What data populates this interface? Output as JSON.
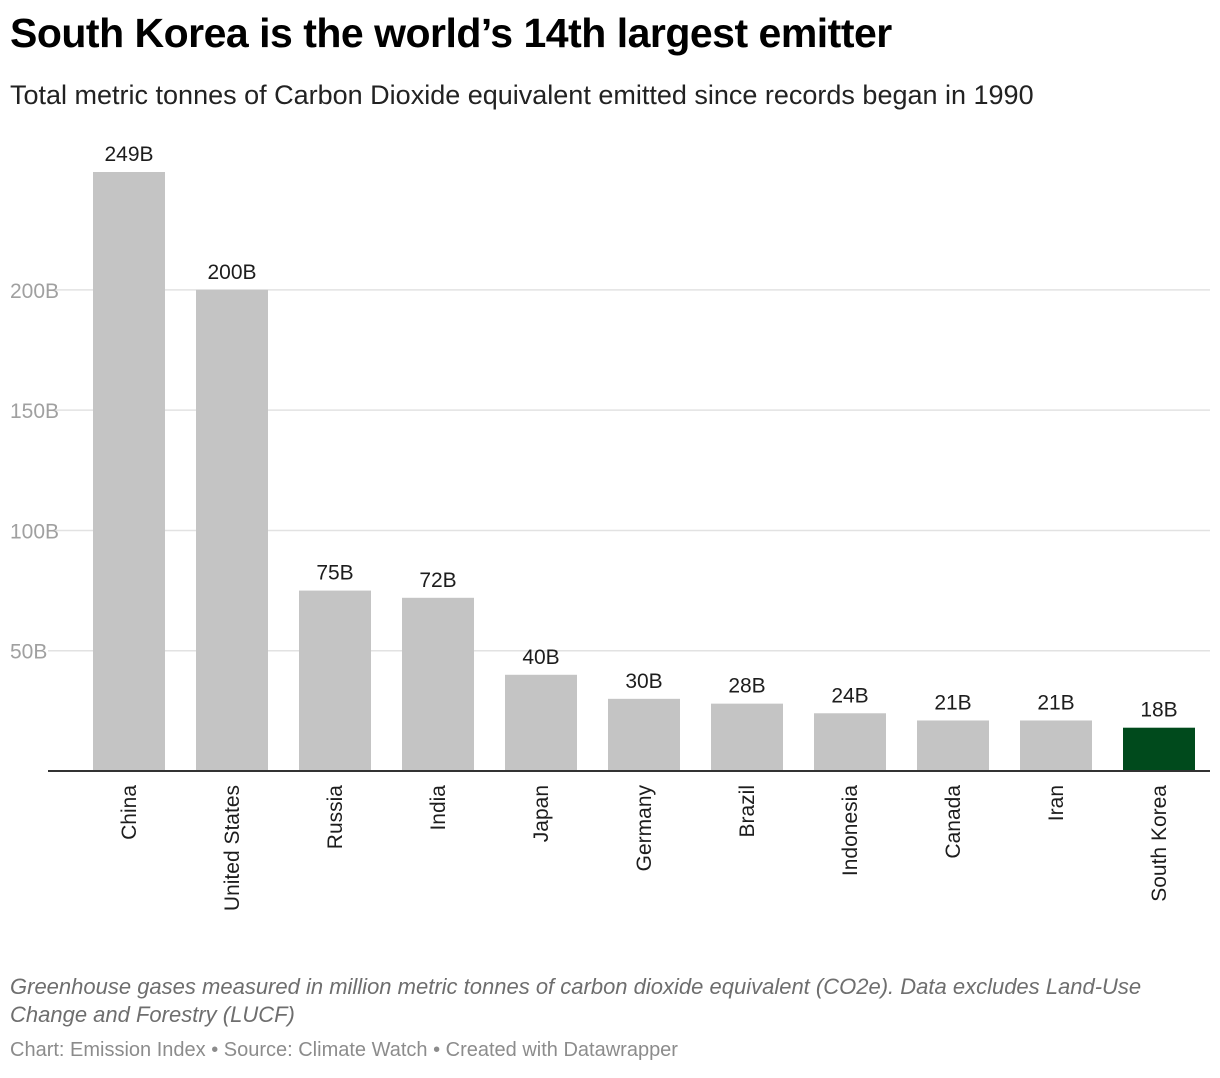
{
  "title": "South Korea is the world’s 14th largest emitter",
  "subtitle": "Total metric tonnes of Carbon Dioxide equivalent emitted since records began in 1990",
  "notes": "Greenhouse gases measured in million metric tonnes of carbon dioxide equivalent (CO2e). Data excludes Land-Use Change and Forestry (LUCF)",
  "footer": "Chart: Emission Index • Source: Climate Watch • Created with Datawrapper",
  "colors": {
    "bar": "#c4c4c4",
    "highlight": "#004a1c",
    "grid": "#e2e2e2",
    "axis_label": "#a0a0a0",
    "baseline": "#333333"
  },
  "chart_data": {
    "type": "bar",
    "categories": [
      "China",
      "United States",
      "Russia",
      "India",
      "Japan",
      "Germany",
      "Brazil",
      "Indonesia",
      "Canada",
      "Iran",
      "South Korea"
    ],
    "values": [
      249,
      200,
      75,
      72,
      40,
      30,
      28,
      24,
      21,
      21,
      18
    ],
    "value_labels": [
      "249B",
      "200B",
      "75B",
      "72B",
      "40B",
      "30B",
      "28B",
      "24B",
      "21B",
      "21B",
      "18B"
    ],
    "highlight": "South Korea",
    "yticks": [
      50,
      100,
      150,
      200
    ],
    "ytick_labels": [
      "50B",
      "100B",
      "150B",
      "200B"
    ],
    "ylim": [
      0,
      249
    ],
    "grid": true
  }
}
